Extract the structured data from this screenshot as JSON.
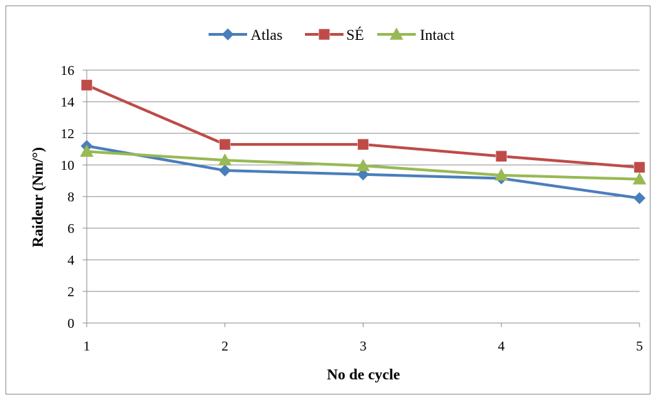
{
  "chart_data": {
    "type": "line",
    "title": "",
    "xlabel": "No de cycle",
    "ylabel": "Raideur (Nm/°)",
    "categories": [
      "1",
      "2",
      "3",
      "4",
      "5"
    ],
    "ylim": [
      0,
      16
    ],
    "yticks": [
      "0",
      "2",
      "4",
      "6",
      "8",
      "10",
      "12",
      "14",
      "16"
    ],
    "grid": true,
    "legend_position": "top",
    "series": [
      {
        "name": "Atlas",
        "values": [
          11.2,
          9.65,
          9.4,
          9.15,
          7.9
        ],
        "color": "#4a7ebb",
        "marker": "diamond"
      },
      {
        "name": "SÉ",
        "values": [
          15.05,
          11.3,
          11.3,
          10.55,
          9.85
        ],
        "color": "#be4b48",
        "marker": "square"
      },
      {
        "name": "Intact",
        "values": [
          10.85,
          10.3,
          9.95,
          9.35,
          9.1
        ],
        "color": "#98b954",
        "marker": "triangle"
      }
    ]
  }
}
